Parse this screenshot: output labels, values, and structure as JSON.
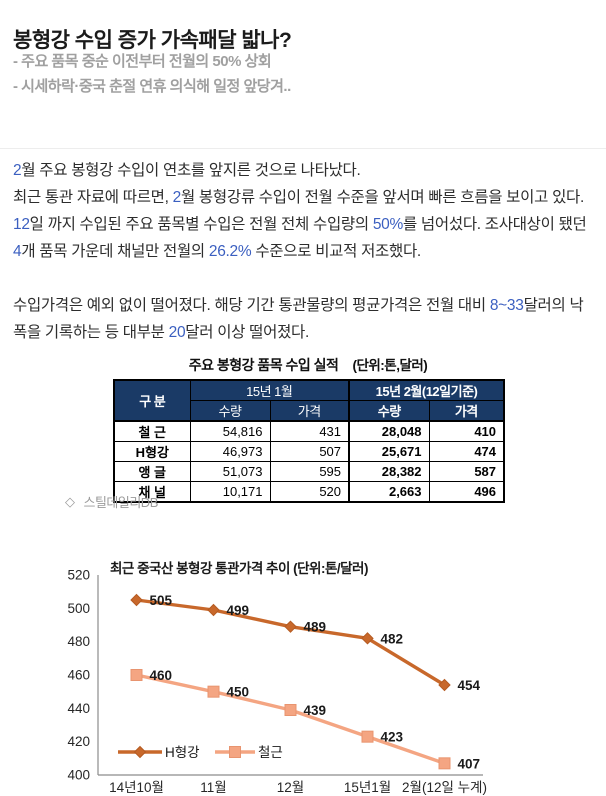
{
  "page": {
    "title": "봉형강 수입 증가 가속패달 밟나?",
    "subtitle1": "- 주요 품목 중순 이전부터 전월의 50% 상회",
    "subtitle2": "- 시세하락·중국 춘절 연휴 의식해 일정 앞당겨.."
  },
  "article": {
    "p1": {
      "segments": [
        {
          "t": "2",
          "hl": true
        },
        {
          "t": "월 주요 봉형강 수입이 연초를 앞지른 것으로 나타났다.",
          "hl": false
        }
      ]
    },
    "p2": {
      "segments": [
        {
          "t": "최근 통관 자료에 따르면, ",
          "hl": false
        },
        {
          "t": "2",
          "hl": true
        },
        {
          "t": "월 봉형강류 수입이 전월 수준을 앞서며 빠른 흐름을 보이고 있다. ",
          "hl": false
        },
        {
          "t": "12",
          "hl": true
        },
        {
          "t": "일 까지 수입된 주요 품목별 수입은 전월 전체 수입량의 ",
          "hl": false
        },
        {
          "t": "50%",
          "hl": true
        },
        {
          "t": "를 넘어섰다. 조사대상이 됐던 ",
          "hl": false
        },
        {
          "t": "4",
          "hl": true
        },
        {
          "t": "개 품목 가운데 채널만 전월의 ",
          "hl": false
        },
        {
          "t": "26.2%",
          "hl": true
        },
        {
          "t": " 수준으로 비교적 저조했다.",
          "hl": false
        }
      ]
    },
    "p3": {
      "segments": [
        {
          "t": "수입가격은 예외 없이 떨어졌다. 해당 기간 통관물량의 평균가격은 전월 대비 ",
          "hl": false
        },
        {
          "t": "8~33",
          "hl": true
        },
        {
          "t": "달러의 낙폭을 기록하는 등 대부분 ",
          "hl": false
        },
        {
          "t": "20",
          "hl": true
        },
        {
          "t": "달러 이상 떨어졌다.",
          "hl": false
        }
      ]
    }
  },
  "table": {
    "title": "주요 봉형강 품목 수입 실적",
    "units": "(단위:톤,달러)",
    "corner_label": "구 분",
    "group1_label": "15년 1월",
    "group2_label": "15년 2월(12일기준)",
    "sub_qty": "수량",
    "sub_price": "가격",
    "rows": [
      {
        "label": "철 근",
        "jan_qty": "54,816",
        "jan_price": "431",
        "feb_qty": "28,048",
        "feb_price": "410"
      },
      {
        "label": "H형강",
        "jan_qty": "46,973",
        "jan_price": "507",
        "feb_qty": "25,671",
        "feb_price": "474"
      },
      {
        "label": "앵 글",
        "jan_qty": "51,073",
        "jan_price": "595",
        "feb_qty": "28,382",
        "feb_price": "587"
      },
      {
        "label": "채 널",
        "jan_qty": "10,171",
        "jan_price": "520",
        "feb_qty": "2,663",
        "feb_price": "496"
      }
    ],
    "caption_icon": "◇",
    "caption": "스틸데일리DB"
  },
  "colors": {
    "highlight_blue": "#3B5FC0",
    "table_header_bg": "#1A3A66",
    "h_beam_orange": "#C8682B",
    "rebar_salmon": "#F4A582",
    "axis_gray": "#8c8c8c"
  },
  "chart_data": {
    "type": "line",
    "title": "최근 중국산 봉형강 통관가격 추이 (단위:톤/달러)",
    "categories": [
      "14년10월",
      "11월",
      "12월",
      "15년1월",
      "2월(12일 누계)"
    ],
    "series": [
      {
        "name": "H형강",
        "values": [
          505,
          499,
          489,
          482,
          454
        ],
        "color": "#C8682B",
        "edge": "#B55B22",
        "marker": "diamond"
      },
      {
        "name": "철근",
        "values": [
          460,
          450,
          439,
          423,
          407
        ],
        "color": "#F4A582",
        "edge": "#E8946F",
        "marker": "square"
      }
    ],
    "ylim": [
      400,
      520
    ],
    "ytick_step": 20,
    "grid": false,
    "data_labels": true,
    "legend_position": "bottom-left-inside"
  }
}
